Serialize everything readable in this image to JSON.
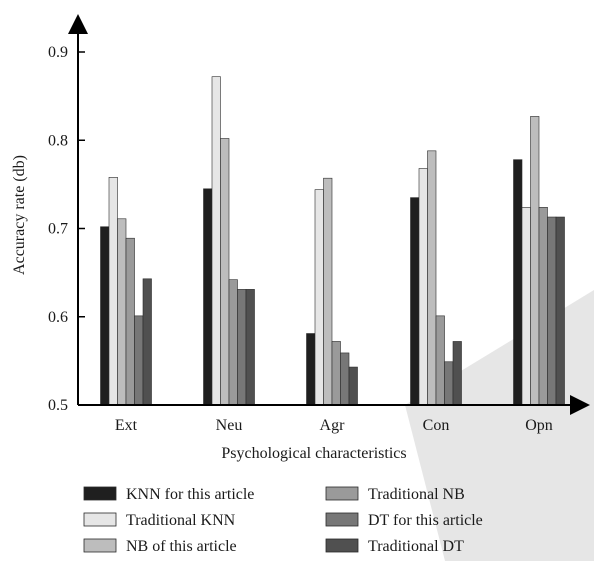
{
  "chart_data": {
    "type": "bar",
    "title": "",
    "xlabel": "Psychological characteristics",
    "ylabel": "Accuracy rate (db)",
    "ylim": [
      0.5,
      0.95
    ],
    "yticks": [
      "0.5",
      "0.6",
      "0.7",
      "0.8",
      "0.9"
    ],
    "categories": [
      "Ext",
      "Neu",
      "Agr",
      "Con",
      "Opn"
    ],
    "legend_position": "bottom",
    "grid": false,
    "series": [
      {
        "name": "KNN for this article",
        "color": "#1f1f1f",
        "values": [
          0.702,
          0.745,
          0.581,
          0.735,
          0.778
        ]
      },
      {
        "name": "Traditional KNN",
        "color": "#e6e6e6",
        "values": [
          0.758,
          0.872,
          0.744,
          0.768,
          0.724
        ]
      },
      {
        "name": "NB of this article",
        "color": "#bdbdbd",
        "values": [
          0.711,
          0.802,
          0.757,
          0.788,
          0.827
        ]
      },
      {
        "name": "Traditional NB",
        "color": "#9a9a9a",
        "values": [
          0.689,
          0.642,
          0.572,
          0.601,
          0.724
        ]
      },
      {
        "name": "DT for this article",
        "color": "#777777",
        "values": [
          0.601,
          0.631,
          0.559,
          0.549,
          0.713
        ]
      },
      {
        "name": "Traditional DT",
        "color": "#505050",
        "values": [
          0.643,
          0.631,
          0.543,
          0.572,
          0.713
        ]
      }
    ]
  }
}
